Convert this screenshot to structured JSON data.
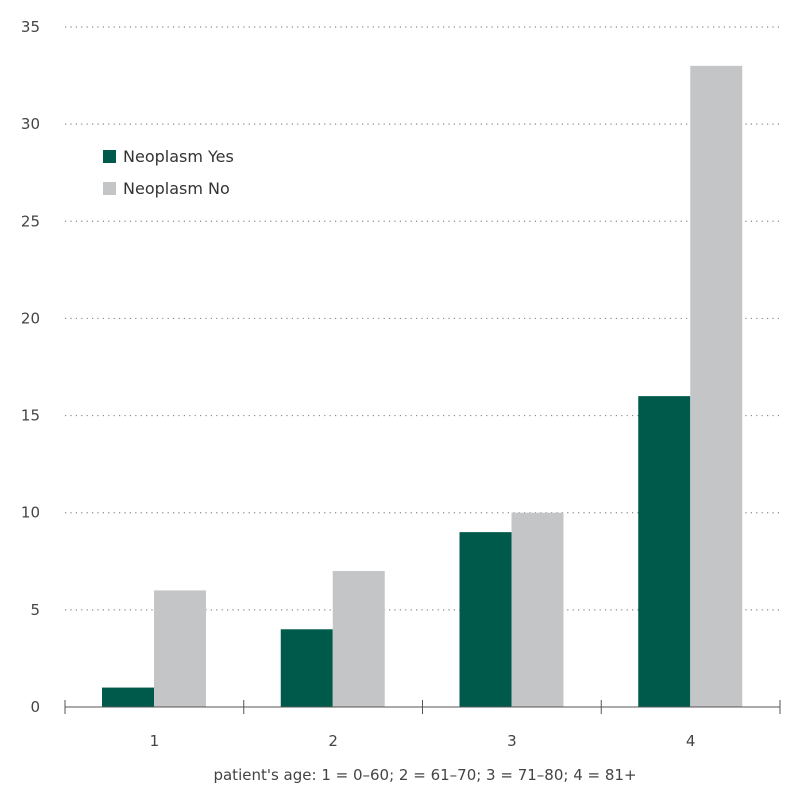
{
  "chart_data": {
    "type": "bar",
    "categories": [
      "1",
      "2",
      "3",
      "4"
    ],
    "series": [
      {
        "name": "Neoplasm Yes",
        "color": "#005a4b",
        "values": [
          1,
          4,
          9,
          16
        ]
      },
      {
        "name": "Neoplasm No",
        "color": "#c4c5c7",
        "values": [
          6,
          7,
          10,
          33
        ]
      }
    ],
    "title": "",
    "xlabel": "patient's age: 1 = 0–60; 2 = 61–70; 3 = 71–80; 4 = 81+",
    "ylabel": "",
    "ylim": [
      0,
      35
    ],
    "yticks": [
      0,
      5,
      10,
      15,
      20,
      25,
      30,
      35
    ],
    "grid": true,
    "grid_style": "dotted",
    "legend_position": "top-left"
  }
}
